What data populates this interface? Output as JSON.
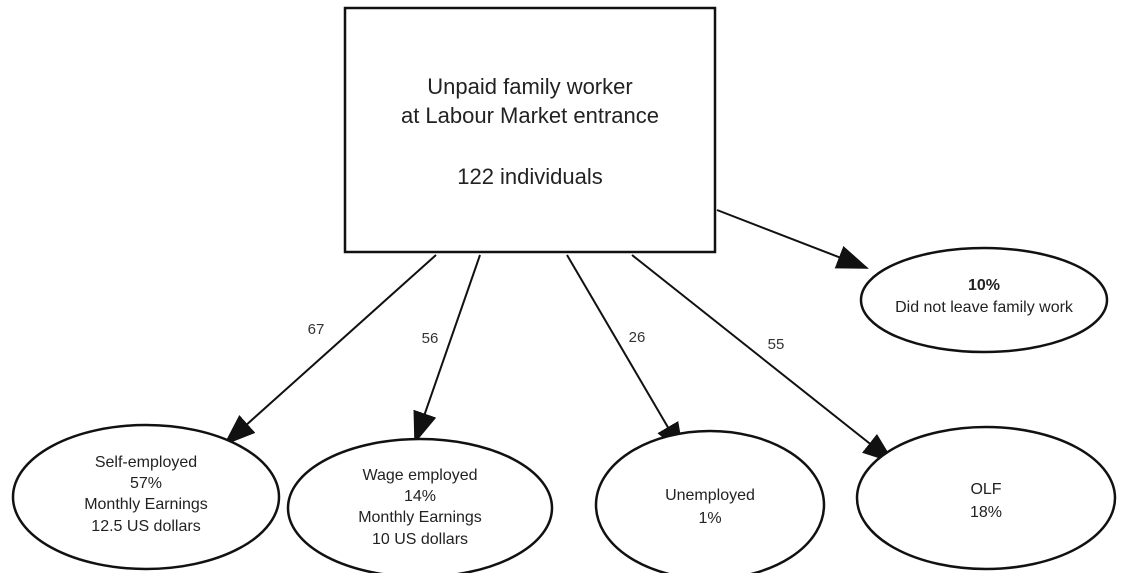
{
  "root": {
    "lines": [
      "Unpaid family worker",
      "at Labour Market entrance",
      "122 individuals"
    ]
  },
  "stay": {
    "lines": [
      "10%",
      "Did not leave family work"
    ]
  },
  "outcomes": [
    {
      "lines": [
        "Self-employed",
        "57%",
        "Monthly Earnings",
        "12.5 US dollars"
      ]
    },
    {
      "lines": [
        "Wage employed",
        "14%",
        "Monthly Earnings",
        "10 US dollars"
      ]
    },
    {
      "lines": [
        "Unemployed",
        "1%"
      ]
    },
    {
      "lines": [
        "OLF",
        "18%"
      ]
    }
  ],
  "edges": [
    {
      "label": 67
    },
    {
      "label": 56
    },
    {
      "label": 26
    },
    {
      "label": 55
    }
  ]
}
